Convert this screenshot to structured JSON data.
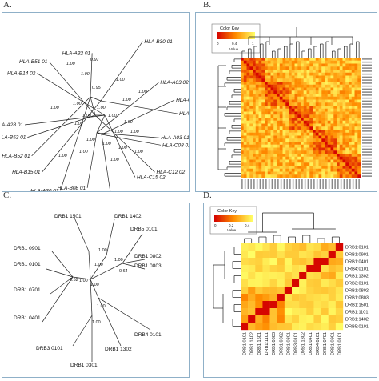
{
  "panels": {
    "a": {
      "letter": "A.",
      "tips": [
        "HLA-B30 01",
        "HLA-A32 01",
        "HLA-B51 01",
        "HLA-B14 02",
        "HLA-A03 02",
        "HLA-C14 02",
        "HLA-B14 03",
        "HLA-B52 01",
        "HLA-B52 01",
        "HLA-A28 01",
        "HLA-A03 01",
        "HLA-C08 02",
        "HLA-B15 01",
        "HLA-A30 02",
        "HLA-C12 02",
        "HLA-C15 02",
        "HLA-B08 01",
        "HLA-B15 03"
      ],
      "supports": [
        "1.00",
        "1.00",
        "0.95",
        "1.00",
        "1.00",
        "1.00",
        "1.00",
        "1.00",
        "1.00",
        "1.00",
        "1.00",
        "1.00",
        "0.97",
        "1.00",
        "1.00",
        "1.00",
        "1.00",
        "1.00",
        "1.00",
        "1.00",
        "1.00",
        "1.00",
        "1.00"
      ]
    },
    "b": {
      "letter": "B.",
      "key_title": "Color Key",
      "key_ticks": [
        "0",
        "0.4",
        "1"
      ],
      "key_axis": "Value"
    },
    "c": {
      "letter": "C.",
      "tips": [
        "DRB1 1501",
        "DRB1 1402",
        "DRB5 0101",
        "DRB1 0901",
        "DRB1 0802",
        "DRB1 0101",
        "DRB1 0803",
        "DRB1 0701",
        "DRB1 0401",
        "DRB4 0101",
        "DRB3 0101",
        "DRB1 1302",
        "DRB1 0301"
      ],
      "supports": [
        "1.00",
        "1.00",
        "0.64",
        "0.52",
        "1.00",
        "1.00",
        "1.00",
        "1.00",
        "1.00"
      ]
    },
    "d": {
      "letter": "D.",
      "key_title": "Color Key",
      "key_ticks": [
        "0",
        "0.2",
        "0.4"
      ],
      "key_axis": "Value",
      "row_labels": [
        "DRB1:0101",
        "DRB1:0901",
        "DRB1:0401",
        "DRB4:0101",
        "DRB1:1302",
        "DRB3:0101",
        "DRB1:0802",
        "DRB1:0803",
        "DRB1:1501",
        "DRB1:1101",
        "DRB1:1402",
        "DRB5:0101"
      ],
      "col_labels": [
        "DRB1:0101",
        "DRB1:1402",
        "DRB1:1501",
        "DRB1:1101",
        "DRB1:0803",
        "DRB1:0802",
        "DRB1:0301",
        "DRB3:0101",
        "DRB1:1302",
        "DRB1:0401",
        "DRB4:0101",
        "DRB1:0701",
        "DRB1:0901",
        "DRB1:0101"
      ]
    }
  },
  "heatmap_colors": {
    "low": "#d40000",
    "mid": "#ff8c00",
    "high": "#ffff66",
    "frame": "#8fb0c8"
  }
}
